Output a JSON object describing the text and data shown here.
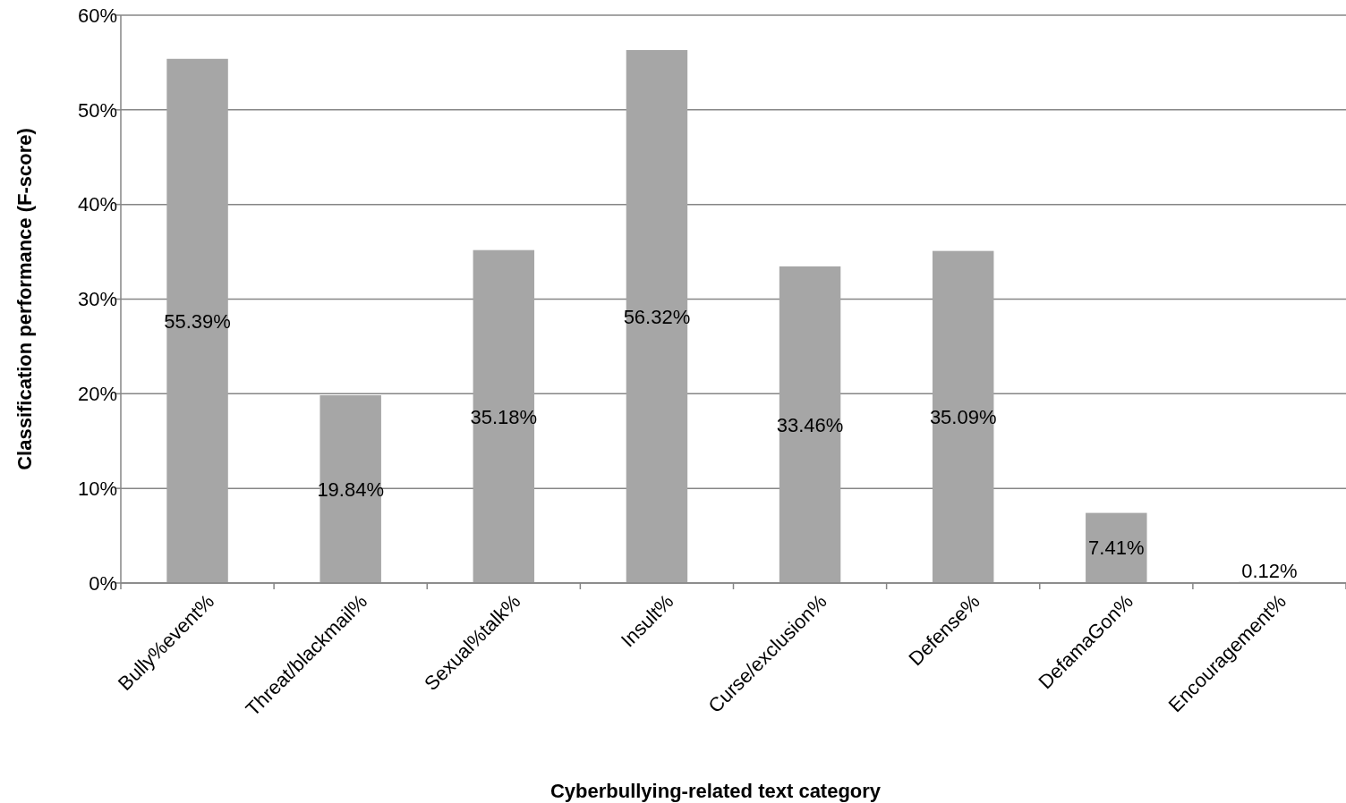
{
  "chart_data": {
    "type": "bar",
    "xlabel": "Cyberbullying-related text category",
    "ylabel": "Classification performance (F-score)",
    "categories": [
      "Bully%event%",
      "Threat/blackmail%",
      "Sexual%talk%",
      "Insult%",
      "Curse/exclusion%",
      "Defense%",
      "DefamaGon%",
      "Encouragement%"
    ],
    "values": [
      55.39,
      19.84,
      35.18,
      56.32,
      33.46,
      35.09,
      7.41,
      0.12
    ],
    "value_labels": [
      "55.39%",
      "19.84%",
      "35.18%",
      "56.32%",
      "33.46%",
      "35.09%",
      "7.41%",
      "0.12%"
    ],
    "color": "#a6a6a6",
    "ylim": [
      0,
      60
    ],
    "yticks": [
      {
        "value": 0,
        "label": "0%"
      },
      {
        "value": 10,
        "label": "10%"
      },
      {
        "value": 20,
        "label": "20%"
      },
      {
        "value": 30,
        "label": "30%"
      },
      {
        "value": 40,
        "label": "40%"
      },
      {
        "value": 50,
        "label": "50%"
      },
      {
        "value": 60,
        "label": "60%"
      }
    ],
    "grid": "y"
  }
}
